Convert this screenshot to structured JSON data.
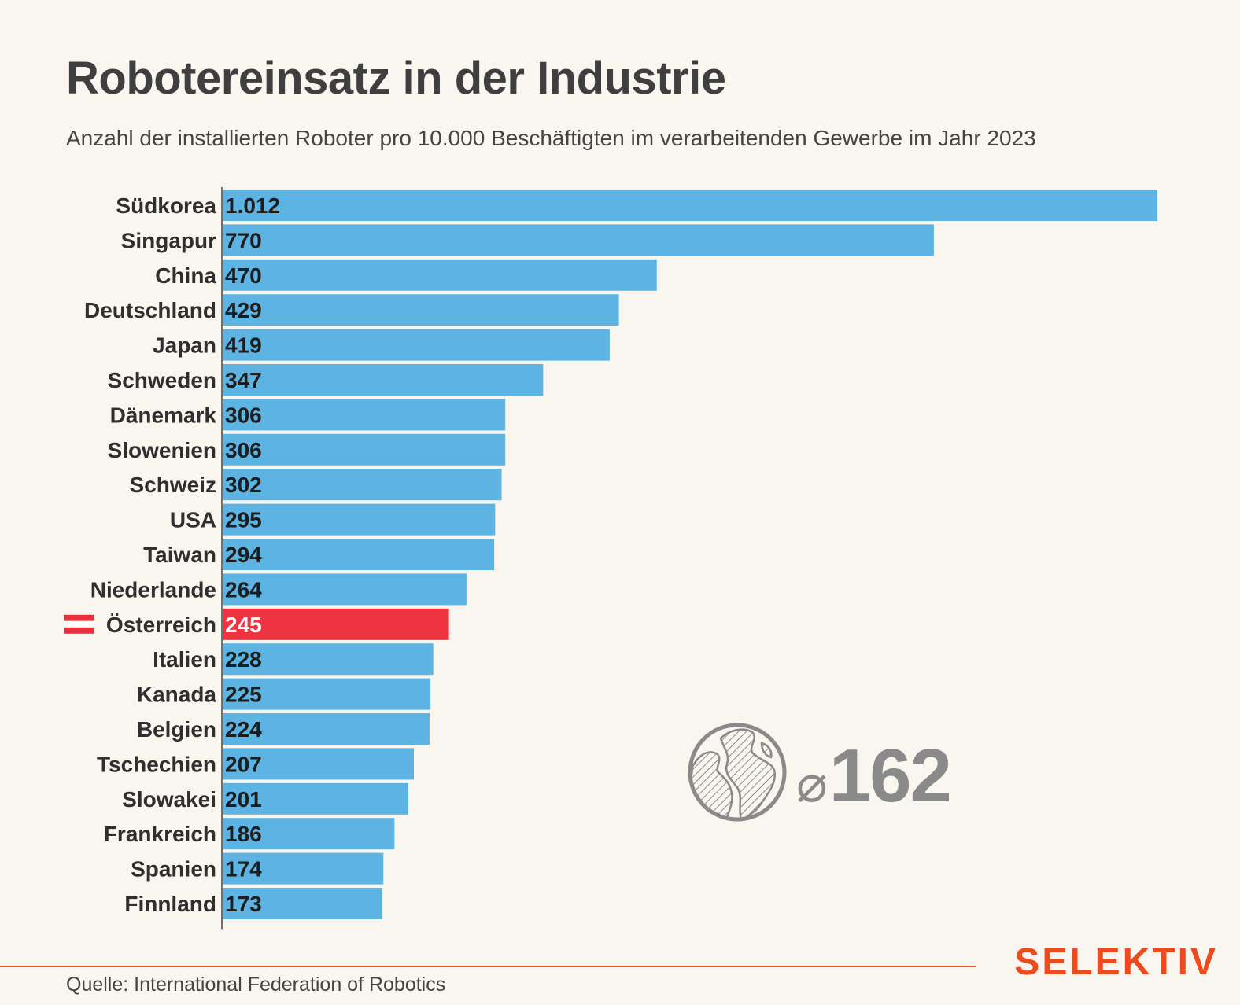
{
  "header": {
    "title": "Robotereinsatz in der Industrie",
    "subtitle": "Anzahl der installierten Roboter pro 10.000 Beschäftigten im verarbeitenden Gewerbe im Jahr 2023"
  },
  "chart_data": {
    "type": "bar",
    "orientation": "horizontal",
    "categories": [
      "Südkorea",
      "Singapur",
      "China",
      "Deutschland",
      "Japan",
      "Schweden",
      "Dänemark",
      "Slowenien",
      "Schweiz",
      "USA",
      "Taiwan",
      "Niederlande",
      "Österreich",
      "Italien",
      "Kanada",
      "Belgien",
      "Tschechien",
      "Slowakei",
      "Frankreich",
      "Spanien",
      "Finnland"
    ],
    "values": [
      1012,
      770,
      470,
      429,
      419,
      347,
      306,
      306,
      302,
      295,
      294,
      264,
      245,
      228,
      225,
      224,
      207,
      201,
      186,
      174,
      173
    ],
    "value_labels": [
      "1.012",
      "770",
      "470",
      "429",
      "419",
      "347",
      "306",
      "306",
      "302",
      "295",
      "294",
      "264",
      "245",
      "228",
      "225",
      "224",
      "207",
      "201",
      "186",
      "174",
      "173"
    ],
    "highlight": "Österreich",
    "colors": {
      "bar": "#5db4e3",
      "highlight": "#ee3440",
      "axis": "#444444"
    },
    "xlim": [
      0,
      1012
    ],
    "grid": false,
    "legend": "none"
  },
  "average": {
    "symbol": "⌀",
    "value": "162",
    "icon": "globe-icon"
  },
  "footer": {
    "source": "Quelle: International Federation of Robotics",
    "brand": "SELEKTIV"
  }
}
